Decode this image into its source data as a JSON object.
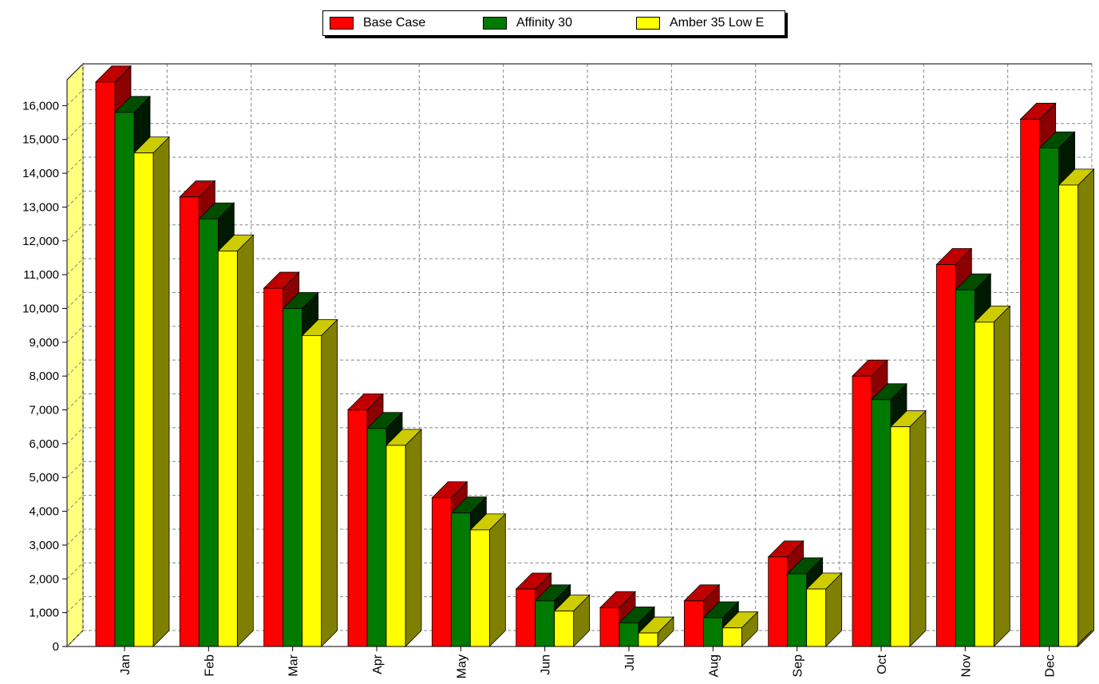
{
  "chart_data": {
    "type": "bar",
    "categories": [
      "Jan",
      "Feb",
      "Mar",
      "Apr",
      "May",
      "Jun",
      "Jul",
      "Aug",
      "Sep",
      "Oct",
      "Nov",
      "Dec"
    ],
    "series": [
      {
        "name": "Base Case",
        "color": "#ff0000",
        "top_color": "#c00000",
        "side_color": "#8b0000",
        "values": [
          16700,
          13300,
          10600,
          7000,
          4400,
          1700,
          1150,
          1350,
          2650,
          8000,
          11300,
          15600
        ]
      },
      {
        "name": "Affinity 30",
        "color": "#007a00",
        "top_color": "#004d00",
        "side_color": "#001a00",
        "values": [
          15800,
          12650,
          10000,
          6450,
          3950,
          1350,
          700,
          850,
          2150,
          7300,
          10550,
          14750
        ]
      },
      {
        "name": "Amber 35 Low E",
        "color": "#ffff00",
        "top_color": "#cccc00",
        "side_color": "#808000",
        "values": [
          14600,
          11700,
          9200,
          5950,
          3450,
          1050,
          400,
          550,
          1700,
          6500,
          9600,
          13650
        ]
      }
    ],
    "yticks": [
      "0",
      "1,000",
      "2,000",
      "3,000",
      "4,000",
      "5,000",
      "6,000",
      "7,000",
      "8,000",
      "9,000",
      "10,000",
      "11,000",
      "12,000",
      "13,000",
      "14,000",
      "15,000",
      "16,000"
    ],
    "ylim": [
      0,
      17000
    ],
    "grid": true,
    "legend_position": "top-center",
    "wall_color": "#ffff80"
  }
}
